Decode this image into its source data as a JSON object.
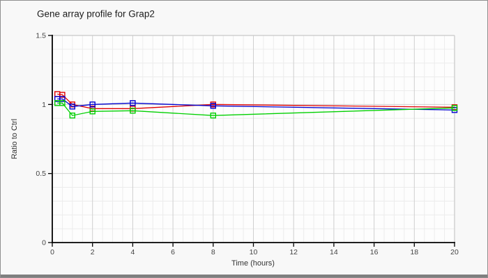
{
  "header": {
    "title": "Gene array profile for Grap2"
  },
  "chart_data": {
    "type": "line",
    "title": "Gene array profile for Grap2",
    "xlabel": "Time (hours)",
    "ylabel": "Ratio to Ctrl",
    "xlim": [
      0,
      20
    ],
    "ylim": [
      0,
      1.5
    ],
    "x_major_ticks": [
      0,
      2,
      4,
      6,
      8,
      10,
      12,
      14,
      16,
      18,
      20
    ],
    "y_major_ticks": [
      0,
      0.5,
      1,
      1.5
    ],
    "x_minor_step": 0.5,
    "y_minor_step": 0.1,
    "grid": true,
    "legend": "none",
    "marker": "open-square",
    "x": [
      0.25,
      0.5,
      1,
      2,
      4,
      8,
      20
    ],
    "series": [
      {
        "name": "red",
        "color": "#e00000",
        "values": [
          1.075,
          1.07,
          1.0,
          0.97,
          0.97,
          1.0,
          0.98
        ]
      },
      {
        "name": "blue",
        "color": "#0000d0",
        "values": [
          1.04,
          1.04,
          0.985,
          1.0,
          1.01,
          0.99,
          0.96
        ]
      },
      {
        "name": "green",
        "color": "#00d000",
        "values": [
          1.01,
          1.01,
          0.92,
          0.95,
          0.955,
          0.92,
          0.975
        ]
      }
    ],
    "colors": {
      "figure_bg": "#f8f8f8",
      "plot_bg": "#fdfdfd",
      "grid_minor": "#ececec",
      "grid_major": "#cfcfcf",
      "plot_border": "#c8c8c8",
      "axis": "#000000",
      "tick_label": "#444444",
      "window_strip": "#7f7f7f"
    }
  }
}
